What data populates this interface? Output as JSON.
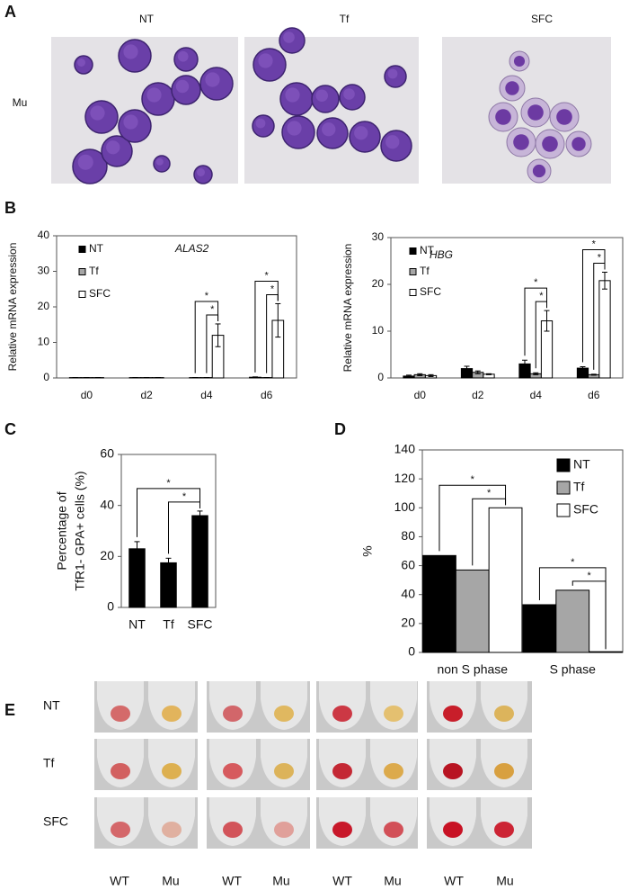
{
  "panel_a": {
    "letter": "A",
    "columns": [
      "NT",
      "Tf",
      "SFC"
    ],
    "row": "Mu"
  },
  "chart_data": [
    {
      "type": "bar",
      "panel": "B",
      "annotation": "ALAS2",
      "ylabel": "Relative mRNA expression",
      "categories": [
        "d0",
        "d2",
        "d4",
        "d6"
      ],
      "series": [
        {
          "name": "NT",
          "color": "#000000",
          "values": [
            0.1,
            0.1,
            0.1,
            0.2
          ],
          "errors": [
            0,
            0,
            0,
            0.1
          ]
        },
        {
          "name": "Tf",
          "color": "#a6a6a6",
          "values": [
            0.1,
            0.1,
            0.1,
            0.1
          ],
          "errors": [
            0,
            0,
            0,
            0
          ]
        },
        {
          "name": "SFC",
          "color": "#ffffff",
          "values": [
            0.1,
            0.1,
            12,
            16.2
          ],
          "errors": [
            0,
            0,
            3.2,
            4.7
          ]
        }
      ],
      "ylim": [
        0,
        40
      ],
      "yticks": [
        0,
        10,
        20,
        30,
        40
      ],
      "legend": "upper left",
      "significance": [
        {
          "category": "d4",
          "from": "Tf",
          "to": "SFC",
          "label": "*"
        },
        {
          "category": "d4",
          "from": "NT",
          "to": "SFC",
          "label": "*"
        },
        {
          "category": "d6",
          "from": "Tf",
          "to": "SFC",
          "label": "*"
        },
        {
          "category": "d6",
          "from": "NT",
          "to": "SFC",
          "label": "*"
        }
      ]
    },
    {
      "type": "bar",
      "annotation": "HBG",
      "ylabel": "Relative mRNA expression",
      "categories": [
        "d0",
        "d2",
        "d4",
        "d6"
      ],
      "series": [
        {
          "name": "NT",
          "color": "#000000",
          "values": [
            0.4,
            2,
            3,
            2.1
          ],
          "errors": [
            0.2,
            0.5,
            0.8,
            0.3
          ]
        },
        {
          "name": "Tf",
          "color": "#a6a6a6",
          "values": [
            0.7,
            1.2,
            0.9,
            0.7
          ],
          "errors": [
            0.2,
            0.3,
            0.2,
            0.1
          ]
        },
        {
          "name": "SFC",
          "color": "#ffffff",
          "values": [
            0.5,
            0.8,
            12.2,
            20.8
          ],
          "errors": [
            0.2,
            0.1,
            2.2,
            1.8
          ]
        }
      ],
      "ylim": [
        0,
        30
      ],
      "yticks": [
        0,
        10,
        20,
        30
      ],
      "legend": "upper left",
      "significance": [
        {
          "category": "d4",
          "from": "Tf",
          "to": "SFC",
          "label": "*"
        },
        {
          "category": "d4",
          "from": "NT",
          "to": "SFC",
          "label": "*"
        },
        {
          "category": "d6",
          "from": "Tf",
          "to": "SFC",
          "label": "*"
        },
        {
          "category": "d6",
          "from": "NT",
          "to": "SFC",
          "label": "*"
        }
      ]
    },
    {
      "type": "bar",
      "panel": "C",
      "ylabel": [
        "Percentage of",
        "TfR1- GPA+ cells (%)"
      ],
      "categories": [
        "NT",
        "Tf",
        "SFC"
      ],
      "values": [
        23,
        17.5,
        36
      ],
      "errors": [
        2.8,
        1.8,
        1.8
      ],
      "color": "#000000",
      "ylim": [
        0,
        60
      ],
      "yticks": [
        0,
        20,
        40,
        60
      ],
      "significance": [
        {
          "from": "Tf",
          "to": "SFC",
          "label": "*"
        },
        {
          "from": "NT",
          "to": "SFC",
          "label": "*"
        }
      ]
    },
    {
      "type": "bar",
      "panel": "D",
      "ylabel": "%",
      "categories": [
        "non S phase",
        "S phase"
      ],
      "series": [
        {
          "name": "NT",
          "color": "#000000",
          "values": [
            67,
            33
          ]
        },
        {
          "name": "Tf",
          "color": "#a6a6a6",
          "values": [
            57,
            43
          ]
        },
        {
          "name": "SFC",
          "color": "#ffffff",
          "values": [
            100,
            0.5
          ]
        }
      ],
      "ylim": [
        0,
        140
      ],
      "yticks": [
        0,
        20,
        40,
        60,
        80,
        100,
        120,
        140
      ],
      "legend": "upper right",
      "significance": [
        {
          "category": "non S phase",
          "from": "Tf",
          "to": "SFC",
          "label": "*"
        },
        {
          "category": "non S phase",
          "from": "NT",
          "to": "SFC",
          "label": "*"
        },
        {
          "category": "S phase",
          "from": "Tf",
          "to": "SFC",
          "label": "*"
        },
        {
          "category": "S phase",
          "from": "NT",
          "to": "SFC",
          "label": "*"
        }
      ]
    }
  ],
  "panel_e": {
    "letter": "E",
    "rows": [
      "NT",
      "Tf",
      "SFC"
    ],
    "columns": [
      "WT",
      "Mu",
      "WT",
      "Mu",
      "WT",
      "Mu",
      "WT",
      "Mu"
    ]
  }
}
